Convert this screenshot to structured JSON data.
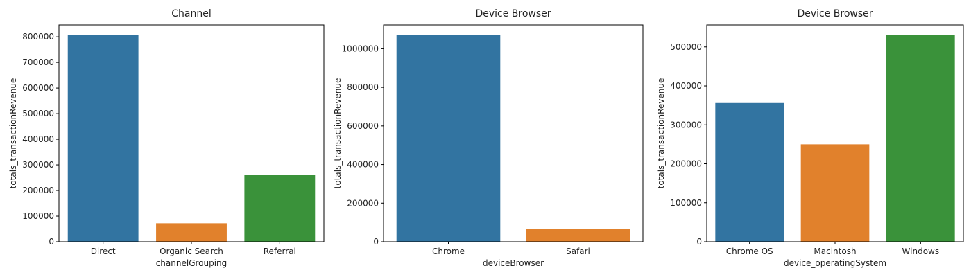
{
  "chart_data": [
    {
      "type": "bar",
      "title": "Channel",
      "xlabel": "channelGrouping",
      "ylabel": "totals_transactionRevenue",
      "categories": [
        "Direct",
        "Organic Search",
        "Referral"
      ],
      "values": [
        806000,
        72000,
        261000
      ],
      "colors": [
        "#3274a1",
        "#e1812c",
        "#3a923a"
      ],
      "ylim": [
        0,
        846300
      ],
      "yticks": [
        0,
        100000,
        200000,
        300000,
        400000,
        500000,
        600000,
        700000,
        800000
      ],
      "ytick_labels": [
        "0",
        "100000",
        "200000",
        "300000",
        "400000",
        "500000",
        "600000",
        "700000",
        "800000"
      ],
      "grid": false,
      "legend": false
    },
    {
      "type": "bar",
      "title": "Device Browser",
      "xlabel": "deviceBrowser",
      "ylabel": "totals_transactionRevenue",
      "categories": [
        "Chrome",
        "Safari"
      ],
      "values": [
        1070000,
        66000
      ],
      "colors": [
        "#3274a1",
        "#e1812c"
      ],
      "ylim": [
        0,
        1123500
      ],
      "yticks": [
        0,
        200000,
        400000,
        600000,
        800000,
        1000000
      ],
      "ytick_labels": [
        "0",
        "200000",
        "400000",
        "600000",
        "800000",
        "1000000"
      ],
      "grid": false,
      "legend": false
    },
    {
      "type": "bar",
      "title": "Device Browser",
      "xlabel": "device_operatingSystem",
      "ylabel": "totals_transactionRevenue",
      "categories": [
        "Chrome OS",
        "Macintosh",
        "Windows"
      ],
      "values": [
        356000,
        250000,
        530000
      ],
      "colors": [
        "#3274a1",
        "#e1812c",
        "#3a923a"
      ],
      "ylim": [
        0,
        556500
      ],
      "yticks": [
        0,
        100000,
        200000,
        300000,
        400000,
        500000
      ],
      "ytick_labels": [
        "0",
        "100000",
        "200000",
        "300000",
        "400000",
        "500000"
      ],
      "grid": false,
      "legend": false
    }
  ]
}
